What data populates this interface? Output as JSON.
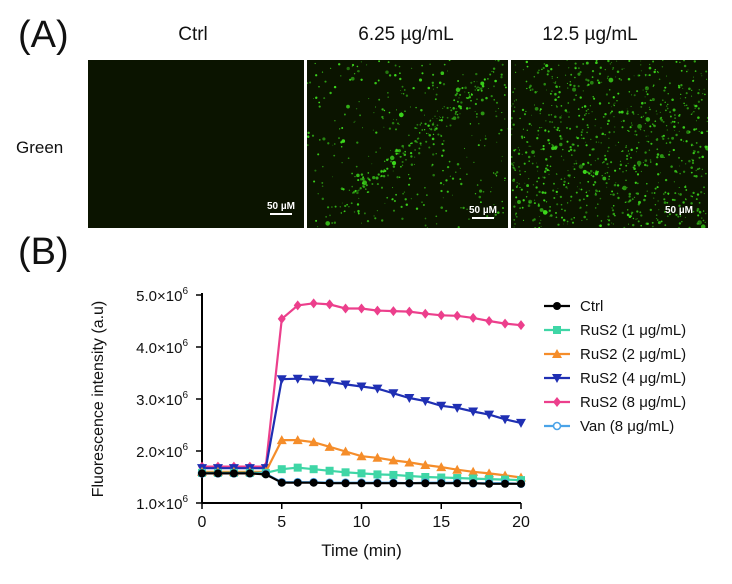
{
  "panel_a": {
    "letter": "(A)",
    "column_titles": [
      "Ctrl",
      "6.25 µg/mL",
      "12.5 µg/mL"
    ],
    "row_label": "Green",
    "scale_bar_label": "50 µM",
    "fluorescence_color": "#3ddc1c"
  },
  "panel_b": {
    "letter": "(B)"
  },
  "chart_data": {
    "type": "line",
    "title": "",
    "xlabel": "Time (min)",
    "ylabel": "Fluorescence intensity (a.u)",
    "xlim": [
      0,
      20
    ],
    "ylim": [
      1000000,
      5000000
    ],
    "x_ticks": [
      0,
      5,
      10,
      15,
      20
    ],
    "y_ticks": [
      1000000,
      2000000,
      3000000,
      4000000,
      5000000
    ],
    "y_tick_mantissas": [
      "1.0",
      "2.0",
      "3.0",
      "4.0",
      "5.0"
    ],
    "y_tick_exponent_text": "×10",
    "y_tick_exponent": "6",
    "grid": false,
    "legend_position": "right",
    "x": [
      0,
      1,
      2,
      3,
      4,
      5,
      6,
      7,
      8,
      9,
      10,
      11,
      12,
      13,
      14,
      15,
      16,
      17,
      18,
      19,
      20
    ],
    "series": [
      {
        "name": "Ctrl",
        "color": "#000000",
        "marker": "circle",
        "values": [
          1570000,
          1570000,
          1570000,
          1570000,
          1550000,
          1390000,
          1390000,
          1390000,
          1380000,
          1380000,
          1380000,
          1380000,
          1380000,
          1380000,
          1380000,
          1380000,
          1380000,
          1380000,
          1370000,
          1370000,
          1370000
        ]
      },
      {
        "name": "RuS2 (1 μg/mL)",
        "color": "#3fd6a6",
        "marker": "square",
        "values": [
          1580000,
          1580000,
          1580000,
          1580000,
          1580000,
          1650000,
          1680000,
          1650000,
          1620000,
          1590000,
          1570000,
          1550000,
          1540000,
          1520000,
          1500000,
          1490000,
          1480000,
          1470000,
          1460000,
          1450000,
          1440000
        ]
      },
      {
        "name": "RuS2 (2 μg/mL)",
        "color": "#f58d2a",
        "marker": "triangle-up",
        "values": [
          1600000,
          1600000,
          1600000,
          1600000,
          1600000,
          2210000,
          2210000,
          2170000,
          2080000,
          1990000,
          1900000,
          1870000,
          1820000,
          1780000,
          1730000,
          1690000,
          1640000,
          1600000,
          1570000,
          1530000,
          1490000
        ]
      },
      {
        "name": "RuS2 (4 μg/mL)",
        "color": "#1f2fb3",
        "marker": "triangle-down",
        "values": [
          1670000,
          1670000,
          1670000,
          1670000,
          1670000,
          3380000,
          3390000,
          3370000,
          3330000,
          3280000,
          3240000,
          3200000,
          3110000,
          3020000,
          2960000,
          2870000,
          2830000,
          2760000,
          2700000,
          2610000,
          2540000
        ]
      },
      {
        "name": "RuS2 (8 μg/mL)",
        "color": "#ec3f8c",
        "marker": "diamond",
        "values": [
          1700000,
          1700000,
          1700000,
          1700000,
          1700000,
          4540000,
          4800000,
          4840000,
          4820000,
          4740000,
          4740000,
          4700000,
          4690000,
          4680000,
          4640000,
          4610000,
          4600000,
          4560000,
          4500000,
          4450000,
          4420000
        ]
      },
      {
        "name": "Van (8 μg/mL)",
        "color": "#4aa3e8",
        "marker": "circle-open",
        "values": [
          1570000,
          1570000,
          1570000,
          1570000,
          1560000,
          1400000,
          1400000,
          1400000,
          1390000,
          1390000,
          1390000,
          1390000,
          1390000,
          1380000,
          1390000,
          1390000,
          1390000,
          1380000,
          1380000,
          1380000,
          1370000
        ]
      }
    ]
  }
}
